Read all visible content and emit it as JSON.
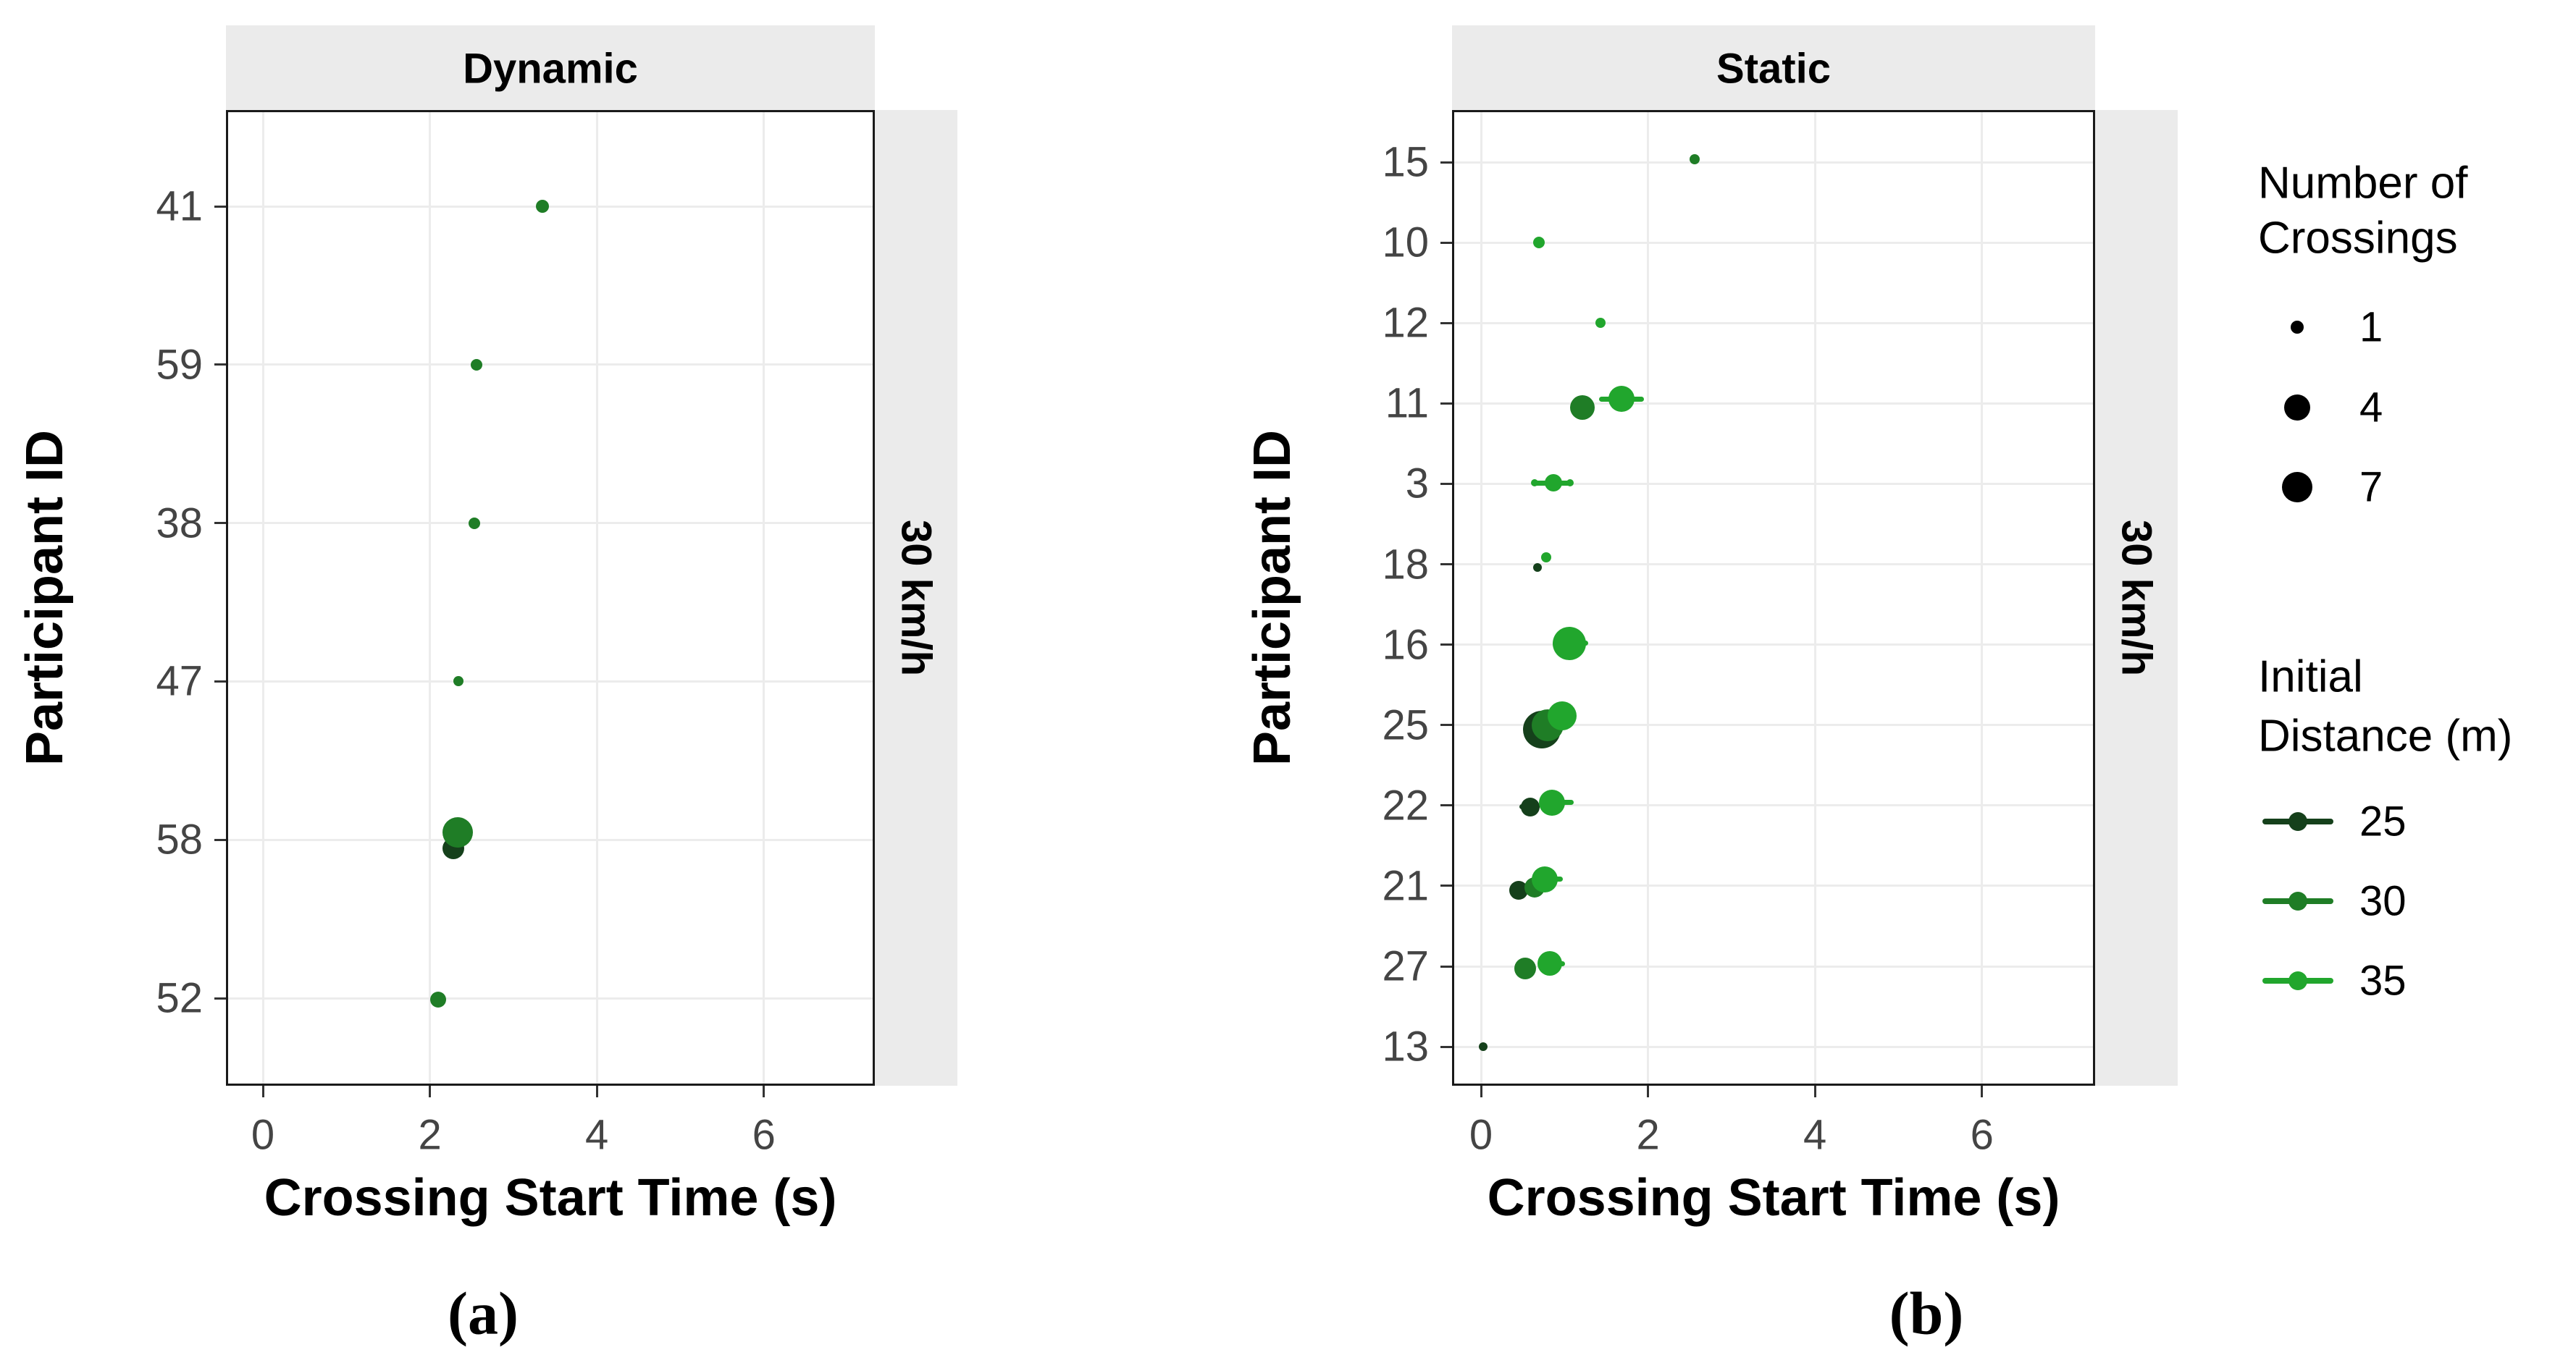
{
  "figure": {
    "caption_a": "(a)",
    "caption_b": "(b)"
  },
  "colors": {
    "strip_bg": "#ebebeb",
    "panel_border": "#1a1a1a",
    "grid": "#ececec",
    "tick_mark": "#333333",
    "tick_label": "#444444",
    "axis_title": "#000000",
    "legend_dot": "#000000",
    "dist_25": "#15401b",
    "dist_30": "#1f7d26",
    "dist_35": "#21a62d"
  },
  "legend": {
    "size": {
      "title_line1": "Number of",
      "title_line2": "Crossings",
      "items": [
        {
          "label": "1",
          "r": 9
        },
        {
          "label": "4",
          "r": 18
        },
        {
          "label": "7",
          "r": 21
        }
      ]
    },
    "color": {
      "title_line1": "Initial",
      "title_line2": "Distance (m)",
      "items": [
        {
          "label": "25",
          "value": 25
        },
        {
          "label": "30",
          "value": 30
        },
        {
          "label": "35",
          "value": 35
        }
      ]
    }
  },
  "chart_data": [
    {
      "type": "scatter",
      "panel": "a",
      "facet_top": "Dynamic",
      "facet_right": "30 km/h",
      "xlabel": "Crossing Start Time (s)",
      "ylabel": "Participant ID",
      "x_ticks": [
        0,
        2,
        4,
        6
      ],
      "xlim": [
        -0.45,
        7.35
      ],
      "grid": "major-only",
      "legend_position": "right",
      "categories": [
        "41",
        "59",
        "38",
        "47",
        "58",
        "52"
      ],
      "points": [
        {
          "id": "41",
          "x": 3.35,
          "crossings": 1,
          "distance": 30,
          "r": 9,
          "dy": 0
        },
        {
          "id": "59",
          "x": 2.56,
          "crossings": 1,
          "distance": 30,
          "r": 8,
          "dy": 0
        },
        {
          "id": "38",
          "x": 2.53,
          "crossings": 1,
          "distance": 30,
          "r": 8,
          "dy": 0
        },
        {
          "id": "47",
          "x": 2.34,
          "crossings": 1,
          "distance": 30,
          "r": 7,
          "dy": 0
        },
        {
          "id": "58",
          "x": 2.28,
          "crossings": 4,
          "distance": 25,
          "r": 15,
          "dy": 12
        },
        {
          "id": "58",
          "x": 2.33,
          "crossings": 7,
          "distance": 30,
          "r": 21,
          "dy": -10
        },
        {
          "id": "52",
          "x": 2.1,
          "crossings": 2,
          "distance": 30,
          "r": 11,
          "dy": 2
        }
      ],
      "ranges": []
    },
    {
      "type": "scatter",
      "panel": "b",
      "facet_top": "Static",
      "facet_right": "30 km/h",
      "xlabel": "Crossing Start Time (s)",
      "ylabel": "Participant ID",
      "x_ticks": [
        0,
        2,
        4,
        6
      ],
      "xlim": [
        -0.45,
        7.35
      ],
      "grid": "major-only",
      "legend_position": "right",
      "categories": [
        "15",
        "10",
        "12",
        "11",
        "3",
        "18",
        "16",
        "25",
        "22",
        "21",
        "27",
        "13"
      ],
      "points": [
        {
          "id": "15",
          "x": 2.56,
          "crossings": 1,
          "distance": 30,
          "r": 7,
          "dy": -4
        },
        {
          "id": "10",
          "x": 0.69,
          "crossings": 1,
          "distance": 35,
          "r": 8,
          "dy": 0
        },
        {
          "id": "12",
          "x": 1.43,
          "crossings": 1,
          "distance": 35,
          "r": 7,
          "dy": 0
        },
        {
          "id": "11",
          "x": 1.21,
          "crossings": 4,
          "distance": 30,
          "r": 17,
          "dy": 6
        },
        {
          "id": "11",
          "x": 1.68,
          "crossings": 4,
          "distance": 35,
          "r": 18,
          "dy": -6
        },
        {
          "id": "3",
          "x": 0.64,
          "crossings": 1,
          "distance": 35,
          "r": 5,
          "dy": -1
        },
        {
          "id": "3",
          "x": 0.87,
          "crossings": 2,
          "distance": 35,
          "r": 12,
          "dy": -1
        },
        {
          "id": "3",
          "x": 1.07,
          "crossings": 1,
          "distance": 35,
          "r": 5,
          "dy": -1
        },
        {
          "id": "18",
          "x": 0.68,
          "crossings": 1,
          "distance": 25,
          "r": 6,
          "dy": 4
        },
        {
          "id": "18",
          "x": 0.78,
          "crossings": 1,
          "distance": 35,
          "r": 7,
          "dy": -10
        },
        {
          "id": "16",
          "x": 1.06,
          "crossings": 7,
          "distance": 35,
          "r": 23,
          "dy": -2
        },
        {
          "id": "25",
          "x": 0.73,
          "crossings": 7,
          "distance": 25,
          "r": 26,
          "dy": 6
        },
        {
          "id": "25",
          "x": 0.8,
          "crossings": 6,
          "distance": 30,
          "r": 22,
          "dy": 0
        },
        {
          "id": "25",
          "x": 0.97,
          "crossings": 5,
          "distance": 35,
          "r": 20,
          "dy": -13
        },
        {
          "id": "22",
          "x": 0.59,
          "crossings": 2,
          "distance": 25,
          "r": 13,
          "dy": 2
        },
        {
          "id": "22",
          "x": 0.85,
          "crossings": 4,
          "distance": 35,
          "r": 18,
          "dy": -4
        },
        {
          "id": "21",
          "x": 0.45,
          "crossings": 2,
          "distance": 25,
          "r": 13,
          "dy": 6
        },
        {
          "id": "21",
          "x": 0.64,
          "crossings": 3,
          "distance": 30,
          "r": 14,
          "dy": 2
        },
        {
          "id": "21",
          "x": 0.76,
          "crossings": 4,
          "distance": 35,
          "r": 18,
          "dy": -9
        },
        {
          "id": "27",
          "x": 0.53,
          "crossings": 3,
          "distance": 30,
          "r": 15,
          "dy": 3
        },
        {
          "id": "27",
          "x": 0.82,
          "crossings": 4,
          "distance": 35,
          "r": 17,
          "dy": -4
        },
        {
          "id": "13",
          "x": 0.03,
          "crossings": 1,
          "distance": 25,
          "r": 6,
          "dy": 0
        }
      ],
      "ranges": [
        {
          "id": "11",
          "x1": 1.41,
          "x2": 1.95,
          "distance": 35,
          "dy": -6
        },
        {
          "id": "3",
          "x1": 0.63,
          "x2": 1.08,
          "distance": 35,
          "dy": -1
        },
        {
          "id": "16",
          "x1": 0.87,
          "x2": 1.28,
          "distance": 35,
          "dy": -2
        },
        {
          "id": "22",
          "x1": 0.46,
          "x2": 0.7,
          "distance": 25,
          "dy": 2
        },
        {
          "id": "22",
          "x1": 0.73,
          "x2": 1.11,
          "distance": 35,
          "dy": -4
        },
        {
          "id": "21",
          "x1": 0.68,
          "x2": 0.98,
          "distance": 35,
          "dy": -9
        },
        {
          "id": "27",
          "x1": 0.7,
          "x2": 1.01,
          "distance": 35,
          "dy": -4
        }
      ]
    }
  ]
}
